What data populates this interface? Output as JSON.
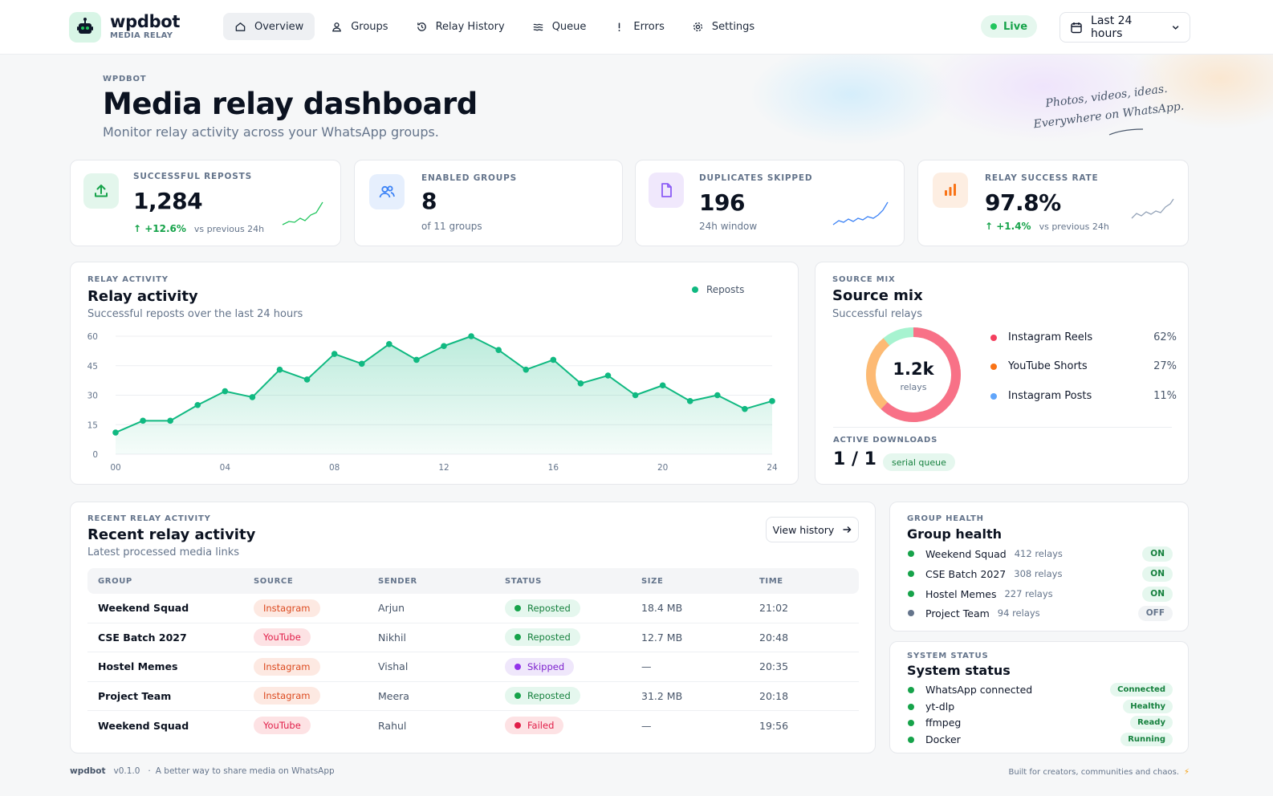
{
  "brand": {
    "name": "wpdbot",
    "subtitle": "MEDIA RELAY"
  },
  "nav": [
    {
      "label": "Overview",
      "icon": "home-icon",
      "active": true
    },
    {
      "label": "Groups",
      "icon": "user-icon",
      "active": false
    },
    {
      "label": "Relay History",
      "icon": "history-icon",
      "active": false
    },
    {
      "label": "Queue",
      "icon": "queue-icon",
      "active": false
    },
    {
      "label": "Errors",
      "icon": "alert-icon",
      "active": false
    },
    {
      "label": "Settings",
      "icon": "gear-icon",
      "active": false
    }
  ],
  "live": {
    "label": "Live"
  },
  "range": {
    "label": "Last 24 hours"
  },
  "page": {
    "eyebrow": "WPDBOT",
    "title": "Media relay dashboard",
    "subtitle": "Monitor relay activity across your WhatsApp groups.",
    "tagline_1": "Photos, videos, ideas.",
    "tagline_2": "Everywhere on WhatsApp."
  },
  "stats": [
    {
      "label": "SUCCESSFUL REPOSTS",
      "value": "1,284",
      "delta": "+12.6%",
      "foot": "vs previous 24h",
      "icon": "upload-icon",
      "color": "#16a34a"
    },
    {
      "label": "ENABLED GROUPS",
      "value": "8",
      "foot": "of 11 groups",
      "icon": "users-icon",
      "color": "#3b82f6"
    },
    {
      "label": "DUPLICATES SKIPPED",
      "value": "196",
      "foot": "24h window",
      "icon": "file-icon",
      "color": "#8b5cf6"
    },
    {
      "label": "RELAY SUCCESS RATE",
      "value": "97.8%",
      "delta": "+1.4%",
      "foot": "vs previous 24h",
      "icon": "bar-chart-icon",
      "color": "#f97316"
    }
  ],
  "activity": {
    "eyebrow": "RELAY ACTIVITY",
    "title": "Relay activity",
    "subtitle": "Successful reposts over the last 24 hours",
    "legend": "Reposts"
  },
  "chart_data": {
    "type": "area",
    "series": [
      {
        "name": "Reposts",
        "x": [
          0,
          1,
          2,
          3,
          4,
          5,
          6,
          7,
          8,
          9,
          10,
          11,
          12,
          13,
          14,
          15,
          16,
          17,
          18,
          19,
          20,
          21,
          22,
          23,
          24
        ],
        "values": [
          11,
          17,
          17,
          25,
          32,
          29,
          43,
          38,
          51,
          46,
          56,
          48,
          55,
          60,
          53,
          43,
          48,
          36,
          40,
          30,
          35,
          27,
          30,
          23,
          27
        ]
      }
    ],
    "xticks": [
      "00",
      "04",
      "08",
      "12",
      "16",
      "20",
      "24"
    ],
    "yticks": [
      0,
      15,
      30,
      45,
      60
    ],
    "xlim": [
      0,
      24
    ],
    "ylim": [
      0,
      60
    ],
    "grid": true,
    "color": "#10b981"
  },
  "source_mix": {
    "eyebrow": "SOURCE MIX",
    "title": "Source mix",
    "subtitle": "Successful relays",
    "center_value": "1.2k",
    "center_label": "relays",
    "items": [
      {
        "label": "Instagram Reels",
        "pct": "62%",
        "value": 62,
        "color": "#f43f5e"
      },
      {
        "label": "YouTube Shorts",
        "pct": "27%",
        "value": 27,
        "color": "#f97316"
      },
      {
        "label": "Instagram Posts",
        "pct": "11%",
        "value": 11,
        "color": "#60a5fa"
      }
    ],
    "active_label": "ACTIVE DOWNLOADS",
    "active_value": "1 / 1",
    "active_pill": "serial queue"
  },
  "recent": {
    "eyebrow": "RECENT RELAY ACTIVITY",
    "title": "Recent relay activity",
    "subtitle": "Latest processed media links",
    "view_label": "View history",
    "columns": [
      "GROUP",
      "SOURCE",
      "SENDER",
      "STATUS",
      "SIZE",
      "TIME"
    ],
    "rows": [
      {
        "group": "Weekend Squad",
        "source": "Instagram",
        "src": "ig",
        "sender": "Arjun",
        "status": "Reposted",
        "st": "reposted",
        "size": "18.4 MB",
        "time": "21:02"
      },
      {
        "group": "CSE Batch 2027",
        "source": "YouTube",
        "src": "yt",
        "sender": "Nikhil",
        "status": "Reposted",
        "st": "reposted",
        "size": "12.7 MB",
        "time": "20:48"
      },
      {
        "group": "Hostel Memes",
        "source": "Instagram",
        "src": "ig",
        "sender": "Vishal",
        "status": "Skipped",
        "st": "skipped",
        "size": "—",
        "time": "20:35"
      },
      {
        "group": "Project Team",
        "source": "Instagram",
        "src": "ig",
        "sender": "Meera",
        "status": "Reposted",
        "st": "reposted",
        "size": "31.2 MB",
        "time": "20:18"
      },
      {
        "group": "Weekend Squad",
        "source": "YouTube",
        "src": "yt",
        "sender": "Rahul",
        "status": "Failed",
        "st": "failed",
        "size": "—",
        "time": "19:56"
      }
    ]
  },
  "group_health": {
    "eyebrow": "GROUP HEALTH",
    "title": "Group health",
    "items": [
      {
        "name": "Weekend Squad",
        "relays": "412 relays",
        "state": "ON",
        "on": true
      },
      {
        "name": "CSE Batch 2027",
        "relays": "308 relays",
        "state": "ON",
        "on": true
      },
      {
        "name": "Hostel Memes",
        "relays": "227 relays",
        "state": "ON",
        "on": true
      },
      {
        "name": "Project Team",
        "relays": "94 relays",
        "state": "OFF",
        "on": false
      }
    ]
  },
  "system_status": {
    "eyebrow": "SYSTEM STATUS",
    "title": "System status",
    "items": [
      {
        "name": "WhatsApp connected",
        "state": "Connected"
      },
      {
        "name": "yt-dlp",
        "state": "Healthy"
      },
      {
        "name": "ffmpeg",
        "state": "Ready"
      },
      {
        "name": "Docker",
        "state": "Running"
      }
    ]
  },
  "footer": {
    "brand": "wpdbot",
    "version": "v0.1.0",
    "sep": "·",
    "tagline": "A better way to share media on WhatsApp",
    "right": "Built for creators, communities and chaos.",
    "bolt": "⚡"
  }
}
